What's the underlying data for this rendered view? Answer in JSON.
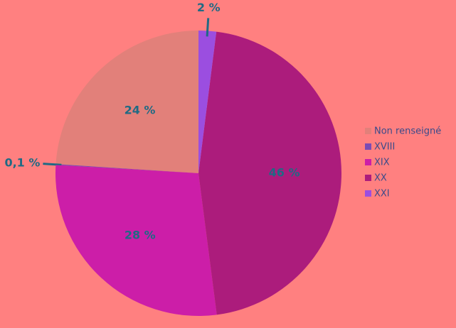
{
  "chart_data": {
    "type": "pie",
    "categories": [
      "Non renseigné",
      "XVIII",
      "XIX",
      "XX",
      "XXI"
    ],
    "values": [
      24,
      0.1,
      28,
      46,
      2
    ],
    "value_labels": [
      "24 %",
      "0,1 %",
      "28 %",
      "46 %",
      "2 %"
    ],
    "colors": [
      "#e2807a",
      "#7a4cb4",
      "#cc1ea8",
      "#ac1c7c",
      "#9b4ee0"
    ],
    "legend": "right"
  }
}
